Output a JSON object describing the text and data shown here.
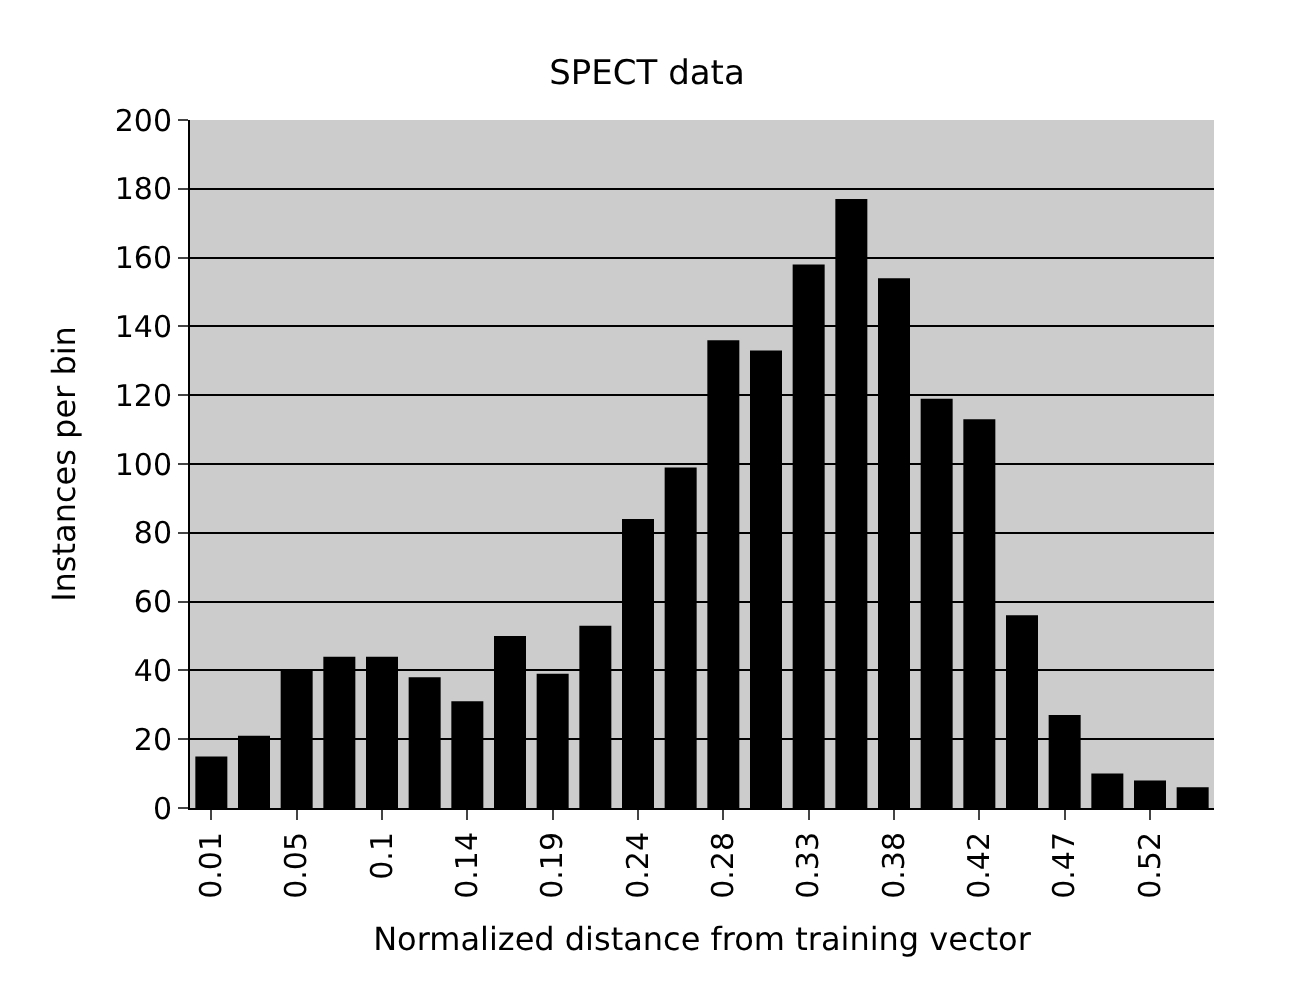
{
  "chart_data": {
    "type": "bar",
    "title": "SPECT data",
    "xlabel": "Normalized distance from training vector",
    "ylabel": "Instances per bin",
    "categories": [
      "0.01",
      null,
      "0.05",
      null,
      "0.1",
      null,
      "0.14",
      null,
      "0.19",
      null,
      "0.24",
      null,
      "0.28",
      null,
      "0.33",
      null,
      "0.38",
      null,
      "0.42",
      null,
      "0.47",
      null,
      "0.52",
      null
    ],
    "values": [
      15,
      21,
      40,
      44,
      44,
      38,
      31,
      50,
      39,
      53,
      84,
      99,
      136,
      133,
      158,
      177,
      154,
      119,
      113,
      56,
      27,
      10,
      8,
      6
    ],
    "color": "#000000",
    "ylim": [
      0,
      200
    ],
    "yticks": [
      0,
      20,
      40,
      60,
      80,
      100,
      120,
      140,
      160,
      180,
      200
    ],
    "grid": "y"
  }
}
